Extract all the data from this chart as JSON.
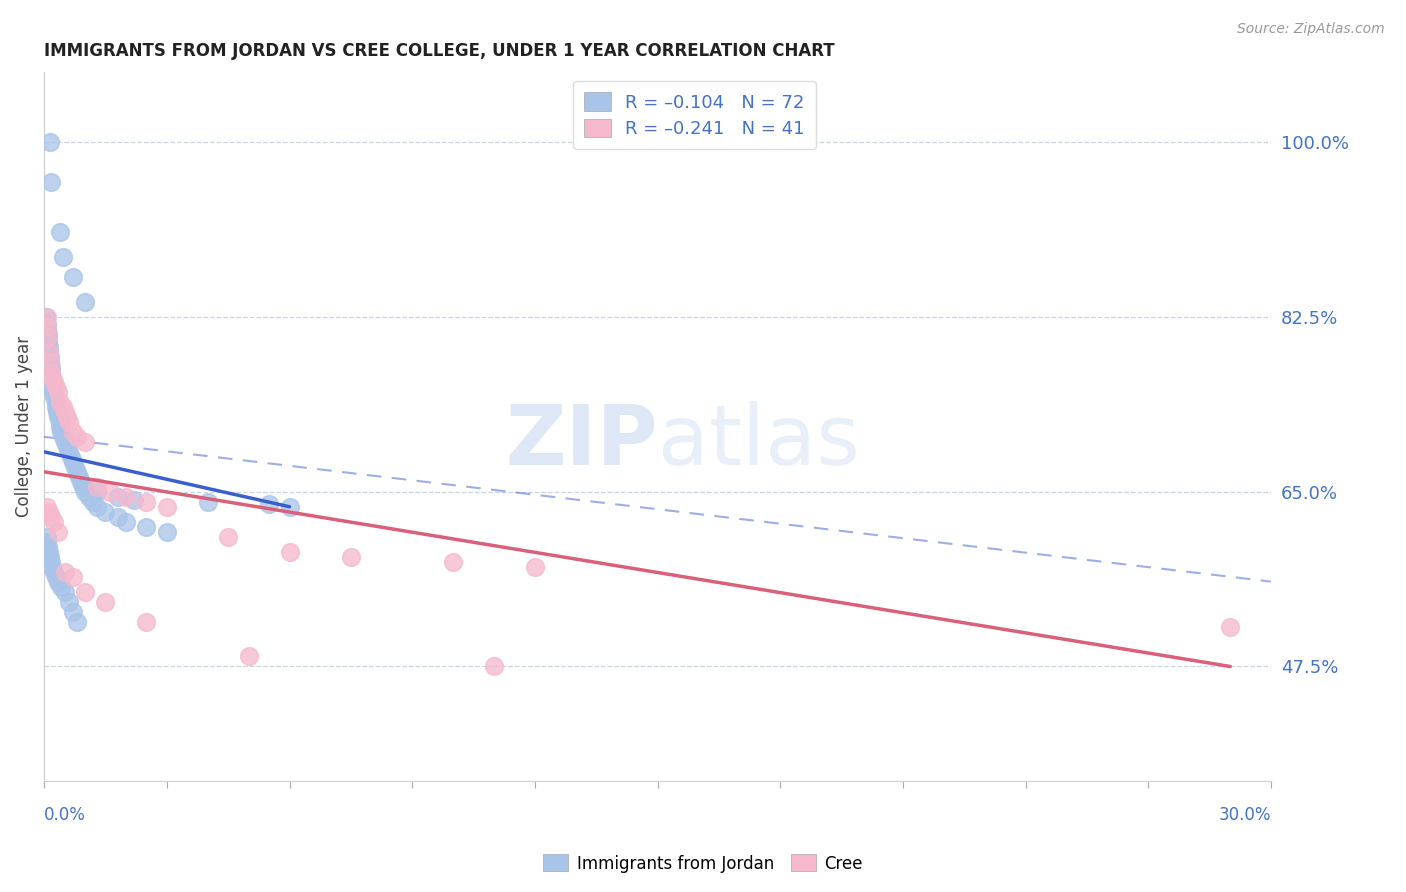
{
  "title": "IMMIGRANTS FROM JORDAN VS CREE COLLEGE, UNDER 1 YEAR CORRELATION CHART",
  "source": "Source: ZipAtlas.com",
  "ylabel": "College, Under 1 year",
  "right_yticks": [
    100.0,
    82.5,
    65.0,
    47.5
  ],
  "xmin": 0.0,
  "xmax": 30.0,
  "ymin": 36.0,
  "ymax": 107.0,
  "legend_entry1": "R = –0.104   N = 72",
  "legend_entry2": "R = –0.241   N = 41",
  "color_blue": "#a8c4e8",
  "color_pink": "#f5b8cc",
  "color_blue_line": "#3a5fcd",
  "color_pink_line": "#d9607a",
  "color_text_blue": "#4472c4",
  "color_grid": "#c8d4e8",
  "blue_points_x": [
    0.15,
    0.18,
    0.4,
    0.45,
    0.7,
    1.0,
    0.05,
    0.07,
    0.08,
    0.09,
    0.1,
    0.12,
    0.13,
    0.14,
    0.15,
    0.16,
    0.17,
    0.18,
    0.19,
    0.2,
    0.22,
    0.25,
    0.28,
    0.3,
    0.32,
    0.35,
    0.38,
    0.4,
    0.42,
    0.45,
    0.5,
    0.55,
    0.6,
    0.65,
    0.7,
    0.75,
    0.8,
    0.85,
    0.9,
    0.95,
    1.0,
    1.1,
    1.2,
    1.3,
    1.5,
    1.8,
    2.0,
    2.5,
    3.0,
    0.06,
    0.08,
    0.1,
    0.12,
    0.14,
    0.16,
    0.2,
    0.24,
    0.28,
    0.35,
    0.42,
    0.5,
    0.6,
    0.7,
    0.8,
    1.0,
    1.3,
    1.8,
    2.2,
    4.0,
    5.5,
    6.0
  ],
  "blue_points_y": [
    100.0,
    96.0,
    91.0,
    88.5,
    86.5,
    84.0,
    82.5,
    81.8,
    81.2,
    80.8,
    80.2,
    79.5,
    79.0,
    78.5,
    78.0,
    77.5,
    77.0,
    76.5,
    76.0,
    75.5,
    75.0,
    74.5,
    74.0,
    73.5,
    73.0,
    72.5,
    72.0,
    71.5,
    71.0,
    70.5,
    70.0,
    69.5,
    69.0,
    68.5,
    68.0,
    67.5,
    67.0,
    66.5,
    66.0,
    65.5,
    65.0,
    64.5,
    64.0,
    63.5,
    63.0,
    62.5,
    62.0,
    61.5,
    61.0,
    60.5,
    60.0,
    59.5,
    59.0,
    58.5,
    58.0,
    57.5,
    57.0,
    56.5,
    56.0,
    55.5,
    55.0,
    54.0,
    53.0,
    52.0,
    65.5,
    65.0,
    64.5,
    64.2,
    64.0,
    63.8,
    63.5
  ],
  "pink_points_x": [
    0.06,
    0.08,
    0.1,
    0.12,
    0.14,
    0.16,
    0.2,
    0.25,
    0.3,
    0.35,
    0.4,
    0.45,
    0.5,
    0.55,
    0.6,
    0.7,
    0.8,
    1.0,
    1.3,
    1.6,
    2.0,
    2.5,
    3.0,
    4.5,
    6.0,
    7.5,
    10.0,
    12.0,
    0.08,
    0.12,
    0.18,
    0.25,
    0.35,
    0.5,
    0.7,
    1.0,
    1.5,
    2.5,
    5.0,
    11.0,
    29.0
  ],
  "pink_points_y": [
    82.5,
    81.5,
    80.5,
    79.0,
    78.0,
    77.0,
    76.5,
    76.0,
    75.5,
    75.0,
    74.0,
    73.5,
    73.0,
    72.5,
    72.0,
    71.0,
    70.5,
    70.0,
    65.5,
    65.0,
    64.5,
    64.0,
    63.5,
    60.5,
    59.0,
    58.5,
    58.0,
    57.5,
    63.5,
    63.0,
    62.5,
    62.0,
    61.0,
    57.0,
    56.5,
    55.0,
    54.0,
    52.0,
    48.5,
    47.5,
    51.5
  ],
  "blue_line_x0": 0.0,
  "blue_line_x1": 6.0,
  "blue_line_y0": 69.0,
  "blue_line_y1": 63.5,
  "pink_line_x0": 0.0,
  "pink_line_x1": 29.0,
  "pink_line_y0": 67.0,
  "pink_line_y1": 47.5,
  "dashed_line_x0": 0.0,
  "dashed_line_x1": 30.0,
  "dashed_line_y0": 70.5,
  "dashed_line_y1": 56.0
}
